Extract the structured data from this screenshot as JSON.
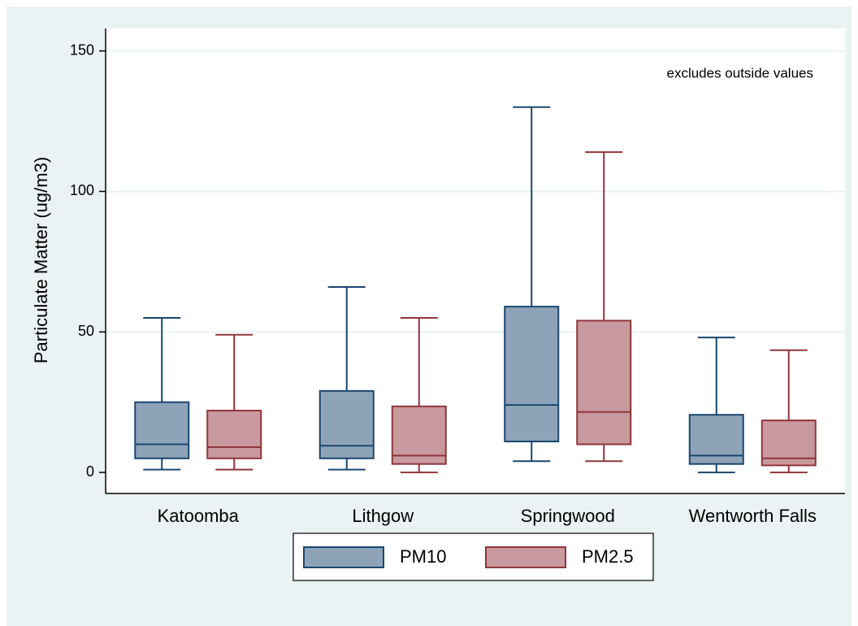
{
  "chart_data": {
    "type": "box",
    "y_label": "Particulate Matter (ug/m3)",
    "annotation": "excludes outside values",
    "categories": [
      "Katoomba",
      "Lithgow",
      "Springwood",
      "Wentworth Falls"
    ],
    "series": [
      {
        "name": "PM10",
        "color": "#1a476f",
        "fill": "#8ea3b8",
        "values": [
          {
            "min": 1,
            "q1": 5,
            "median": 10,
            "q3": 25,
            "max": 55
          },
          {
            "min": 1,
            "q1": 5,
            "median": 9.5,
            "q3": 29,
            "max": 66
          },
          {
            "min": 4,
            "q1": 11,
            "median": 24,
            "q3": 59,
            "max": 130
          },
          {
            "min": 0,
            "q1": 3,
            "median": 6,
            "q3": 20.5,
            "max": 48
          }
        ]
      },
      {
        "name": "PM2.5",
        "color": "#90353b",
        "fill": "#c8999e",
        "values": [
          {
            "min": 1,
            "q1": 5,
            "median": 9,
            "q3": 22,
            "max": 49
          },
          {
            "min": 0,
            "q1": 3,
            "median": 6,
            "q3": 23.5,
            "max": 55
          },
          {
            "min": 4,
            "q1": 10,
            "median": 21.5,
            "q3": 54,
            "max": 114
          },
          {
            "min": 0,
            "q1": 2.5,
            "median": 5,
            "q3": 18.5,
            "max": 43.5
          }
        ]
      }
    ],
    "ylim": [
      -7.5,
      158
    ],
    "yticks": [
      0,
      50,
      100,
      150
    ],
    "grid": true,
    "legend": "bottom"
  }
}
